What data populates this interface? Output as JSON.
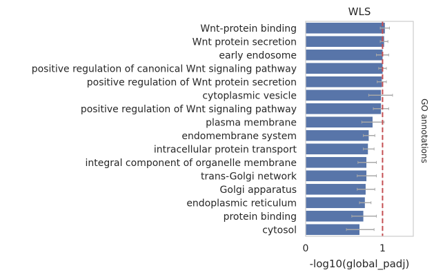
{
  "chart_data": {
    "type": "bar",
    "orientation": "horizontal",
    "title": "WLS",
    "xlabel": "-log10(global_padj)",
    "ylabel": "",
    "right_label": "GO annotations",
    "xlim": [
      0,
      1.4
    ],
    "xticks": [
      "0",
      "1"
    ],
    "xtick_values": [
      0,
      1
    ],
    "threshold": 1.0,
    "grid": true,
    "bar_color": "#5875a9",
    "error_color": "#a8a8a8",
    "threshold_color": "#c44e52",
    "categories": [
      "Wnt-protein binding",
      "Wnt protein secretion",
      "early endosome",
      "positive regulation of canonical Wnt signaling pathway",
      "positive regulation of Wnt protein secretion",
      "cytoplasmic vesicle",
      "positive regulation of Wnt signaling pathway",
      "plasma membrane",
      "endomembrane system",
      "intracellular protein transport",
      "integral component of organelle membrane",
      "trans-Golgi network",
      "Golgi apparatus",
      "endoplasmic reticulum",
      "protein binding",
      "cytosol"
    ],
    "values": [
      1.03,
      1.02,
      1.0,
      1.0,
      0.99,
      0.98,
      0.98,
      0.87,
      0.82,
      0.81,
      0.79,
      0.79,
      0.78,
      0.77,
      0.75,
      0.7
    ],
    "error_low": [
      0.97,
      0.97,
      0.92,
      0.95,
      0.93,
      0.82,
      0.88,
      0.73,
      0.75,
      0.75,
      0.68,
      0.67,
      0.67,
      0.7,
      0.6,
      0.53
    ],
    "error_high": [
      1.09,
      1.07,
      1.08,
      1.05,
      1.05,
      1.13,
      1.08,
      1.02,
      0.9,
      0.89,
      0.92,
      0.92,
      0.9,
      0.85,
      0.92,
      0.89
    ]
  }
}
